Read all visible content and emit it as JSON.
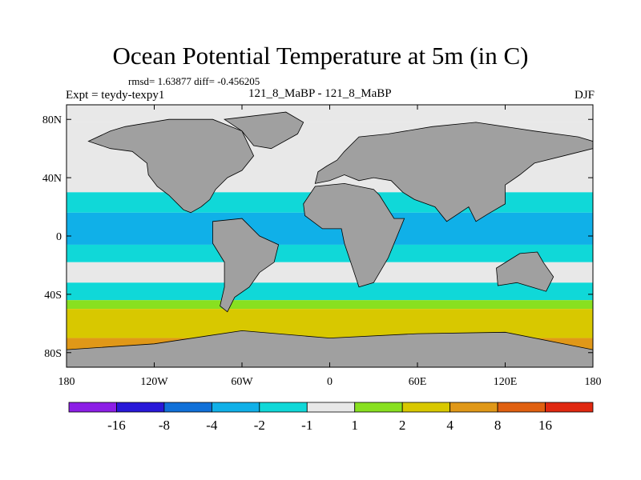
{
  "title": "Ocean Potential Temperature at 5m (in C)",
  "stats": "rmsd= 1.63877 diff= -0.456205",
  "experiment": "Expt = teydy-texpy1",
  "period": "121_8_MaBP - 121_8_MaBP",
  "season": "DJF",
  "map": {
    "lon_range": [
      -180,
      180
    ],
    "lat_range": [
      -90,
      90
    ],
    "lon_ticks": [
      {
        "value": -180,
        "label": "180"
      },
      {
        "value": -120,
        "label": "120W"
      },
      {
        "value": -60,
        "label": "60W"
      },
      {
        "value": 0,
        "label": "0"
      },
      {
        "value": 60,
        "label": "60E"
      },
      {
        "value": 120,
        "label": "120E"
      },
      {
        "value": 180,
        "label": "180"
      }
    ],
    "lat_ticks": [
      {
        "value": 80,
        "label": "80N"
      },
      {
        "value": 40,
        "label": "40N"
      },
      {
        "value": 0,
        "label": "0"
      },
      {
        "value": -40,
        "label": "40S"
      },
      {
        "value": -80,
        "label": "80S"
      }
    ],
    "land_color": "#a0a0a0",
    "bands": [
      {
        "lat_from": 90,
        "lat_to": 78,
        "color": "#e8e8e8"
      },
      {
        "lat_from": 78,
        "lat_to": 30,
        "color": "#e8e8e8"
      },
      {
        "lat_from": 30,
        "lat_to": 16,
        "color": "#10d8d8"
      },
      {
        "lat_from": 16,
        "lat_to": -6,
        "color": "#10b0e8"
      },
      {
        "lat_from": -6,
        "lat_to": -18,
        "color": "#10d8d8"
      },
      {
        "lat_from": -18,
        "lat_to": -32,
        "color": "#e8e8e8"
      },
      {
        "lat_from": -32,
        "lat_to": -44,
        "color": "#10d8d8"
      },
      {
        "lat_from": -44,
        "lat_to": -50,
        "color": "#88e020"
      },
      {
        "lat_from": -50,
        "lat_to": -70,
        "color": "#d8c800"
      },
      {
        "lat_from": -70,
        "lat_to": -90,
        "color": "#e09818"
      }
    ],
    "continents": [
      {
        "name": "north-america",
        "points": [
          [
            -140,
            75
          ],
          [
            -110,
            80
          ],
          [
            -80,
            80
          ],
          [
            -60,
            72
          ],
          [
            -52,
            55
          ],
          [
            -60,
            45
          ],
          [
            -70,
            40
          ],
          [
            -78,
            32
          ],
          [
            -82,
            25
          ],
          [
            -88,
            20
          ],
          [
            -95,
            16
          ],
          [
            -100,
            18
          ],
          [
            -110,
            28
          ],
          [
            -118,
            34
          ],
          [
            -124,
            42
          ],
          [
            -125,
            50
          ],
          [
            -135,
            58
          ],
          [
            -150,
            60
          ],
          [
            -165,
            65
          ],
          [
            -150,
            72
          ]
        ]
      },
      {
        "name": "greenland",
        "points": [
          [
            -72,
            80
          ],
          [
            -30,
            85
          ],
          [
            -18,
            78
          ],
          [
            -22,
            70
          ],
          [
            -40,
            60
          ],
          [
            -52,
            62
          ],
          [
            -60,
            72
          ]
        ]
      },
      {
        "name": "south-america",
        "points": [
          [
            -80,
            10
          ],
          [
            -60,
            12
          ],
          [
            -48,
            0
          ],
          [
            -35,
            -6
          ],
          [
            -38,
            -18
          ],
          [
            -48,
            -25
          ],
          [
            -55,
            -35
          ],
          [
            -65,
            -42
          ],
          [
            -70,
            -52
          ],
          [
            -75,
            -48
          ],
          [
            -72,
            -35
          ],
          [
            -72,
            -18
          ],
          [
            -80,
            -5
          ]
        ]
      },
      {
        "name": "eurasia",
        "points": [
          [
            -10,
            36
          ],
          [
            -8,
            44
          ],
          [
            -2,
            48
          ],
          [
            5,
            52
          ],
          [
            10,
            58
          ],
          [
            20,
            68
          ],
          [
            40,
            70
          ],
          [
            70,
            75
          ],
          [
            100,
            78
          ],
          [
            140,
            72
          ],
          [
            170,
            68
          ],
          [
            180,
            65
          ],
          [
            180,
            60
          ],
          [
            160,
            55
          ],
          [
            140,
            50
          ],
          [
            130,
            42
          ],
          [
            120,
            35
          ],
          [
            120,
            22
          ],
          [
            108,
            15
          ],
          [
            100,
            10
          ],
          [
            95,
            20
          ],
          [
            80,
            10
          ],
          [
            72,
            20
          ],
          [
            58,
            25
          ],
          [
            50,
            30
          ],
          [
            42,
            38
          ],
          [
            30,
            40
          ],
          [
            20,
            38
          ],
          [
            10,
            42
          ],
          [
            0,
            38
          ]
        ]
      },
      {
        "name": "africa",
        "points": [
          [
            -18,
            22
          ],
          [
            -10,
            34
          ],
          [
            10,
            36
          ],
          [
            30,
            32
          ],
          [
            34,
            28
          ],
          [
            44,
            12
          ],
          [
            51,
            12
          ],
          [
            40,
            -15
          ],
          [
            30,
            -32
          ],
          [
            20,
            -35
          ],
          [
            15,
            -20
          ],
          [
            10,
            -5
          ],
          [
            8,
            5
          ],
          [
            -5,
            5
          ],
          [
            -17,
            14
          ]
        ]
      },
      {
        "name": "australia",
        "points": [
          [
            114,
            -22
          ],
          [
            130,
            -12
          ],
          [
            142,
            -11
          ],
          [
            146,
            -18
          ],
          [
            153,
            -28
          ],
          [
            148,
            -38
          ],
          [
            138,
            -35
          ],
          [
            128,
            -32
          ],
          [
            115,
            -34
          ]
        ]
      },
      {
        "name": "antarctica",
        "points": [
          [
            -180,
            -78
          ],
          [
            -120,
            -74
          ],
          [
            -60,
            -65
          ],
          [
            0,
            -70
          ],
          [
            60,
            -67
          ],
          [
            120,
            -66
          ],
          [
            180,
            -78
          ],
          [
            180,
            -90
          ],
          [
            -180,
            -90
          ]
        ]
      }
    ]
  },
  "colorbar": {
    "colors": [
      "#8c1ee6",
      "#2818d8",
      "#1070d8",
      "#10b0e8",
      "#10d8d8",
      "#e8e8e8",
      "#88e020",
      "#d8c800",
      "#e09818",
      "#e06010",
      "#e02810"
    ],
    "labels": [
      "-16",
      "-8",
      "-4",
      "-2",
      "-1",
      "1",
      "2",
      "4",
      "8",
      "16"
    ]
  }
}
